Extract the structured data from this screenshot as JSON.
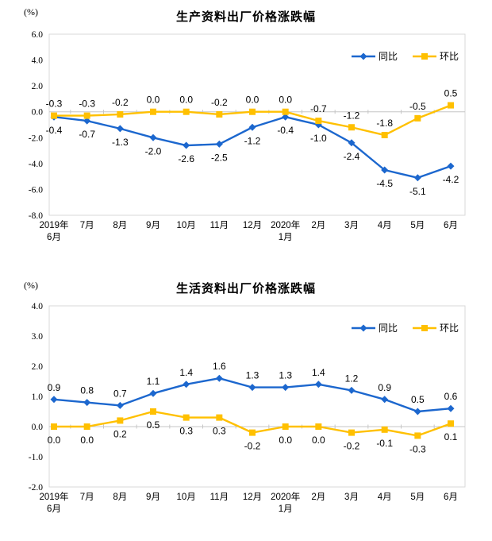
{
  "colors": {
    "series_tongbi_blue": "#1C67CE",
    "series_huanbi_yellow": "#FFC000",
    "zero_line": "#C6C6C6",
    "plot_border": "#D9D9D9",
    "text": "#000000"
  },
  "chart_data": [
    {
      "type": "line",
      "title": "生产资料出厂价格涨跌幅",
      "y_unit": "(%)",
      "categories": [
        "2019年\n6月",
        "7月",
        "8月",
        "9月",
        "10月",
        "11月",
        "12月",
        "2020年\n1月",
        "2月",
        "3月",
        "4月",
        "5月",
        "6月"
      ],
      "y_ticks": [
        6.0,
        4.0,
        2.0,
        0.0,
        -2.0,
        -4.0,
        -6.0,
        -8.0
      ],
      "ylim": [
        -8.0,
        6.0
      ],
      "grid": false,
      "legend_position": "top-right",
      "series": [
        {
          "id": "tongbi",
          "name": "同比",
          "color": "#1C67CE",
          "marker": "diamond",
          "label_side": "below",
          "values": [
            -0.4,
            -0.7,
            -1.3,
            -2.0,
            -2.6,
            -2.5,
            -1.2,
            -0.4,
            -1.0,
            -2.4,
            -4.5,
            -5.1,
            -4.2
          ]
        },
        {
          "id": "huanbi",
          "name": "环比",
          "color": "#FFC000",
          "marker": "square",
          "label_side": "above",
          "values": [
            -0.3,
            -0.3,
            -0.2,
            0.0,
            0.0,
            -0.2,
            0.0,
            0.0,
            -0.7,
            -1.2,
            -1.8,
            -0.5,
            0.5
          ]
        }
      ]
    },
    {
      "type": "line",
      "title": "生活资料出厂价格涨跌幅",
      "y_unit": "(%)",
      "categories": [
        "2019年\n6月",
        "7月",
        "8月",
        "9月",
        "10月",
        "11月",
        "12月",
        "2020年\n1月",
        "2月",
        "3月",
        "4月",
        "5月",
        "6月"
      ],
      "y_ticks": [
        4.0,
        3.0,
        2.0,
        1.0,
        0.0,
        -1.0,
        -2.0
      ],
      "ylim": [
        -2.0,
        4.0
      ],
      "grid": false,
      "legend_position": "top-right",
      "series": [
        {
          "id": "tongbi",
          "name": "同比",
          "color": "#1C67CE",
          "marker": "diamond",
          "label_side": "above",
          "values": [
            0.9,
            0.8,
            0.7,
            1.1,
            1.4,
            1.6,
            1.3,
            1.3,
            1.4,
            1.2,
            0.9,
            0.5,
            0.6
          ]
        },
        {
          "id": "huanbi",
          "name": "环比",
          "color": "#FFC000",
          "marker": "square",
          "label_side": "below",
          "values": [
            0.0,
            0.0,
            0.2,
            0.5,
            0.3,
            0.3,
            -0.2,
            0.0,
            0.0,
            -0.2,
            -0.1,
            -0.3,
            0.1
          ]
        }
      ]
    }
  ]
}
